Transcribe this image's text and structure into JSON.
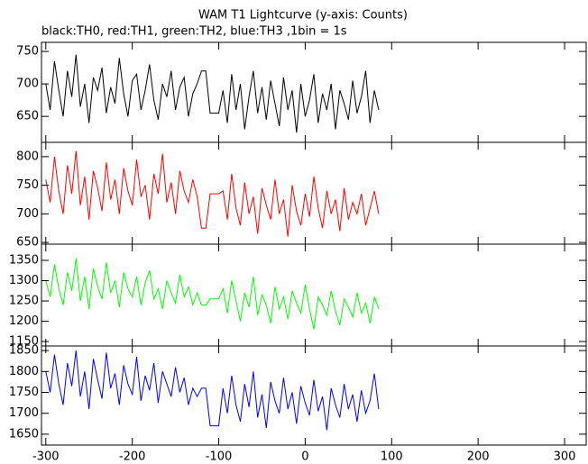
{
  "chart_data": {
    "type": "line",
    "layout": "stacked",
    "title": "WAM T1 Lightcurve (y-axis: Counts)",
    "subtitle": "black:TH0, red:TH1, green:TH2, blue:TH3 ,1bin = 1s",
    "x": [
      -300,
      -295,
      -290,
      -285,
      -280,
      -275,
      -270,
      -265,
      -260,
      -255,
      -250,
      -245,
      -240,
      -235,
      -230,
      -225,
      -220,
      -215,
      -210,
      -205,
      -200,
      -195,
      -190,
      -185,
      -180,
      -175,
      -170,
      -165,
      -160,
      -155,
      -150,
      -145,
      -140,
      -135,
      -130,
      -125,
      -120,
      -115,
      -110,
      -105,
      -100,
      -95,
      -90,
      -85,
      -80,
      -75,
      -70,
      -65,
      -60,
      -55,
      -50,
      -45,
      -40,
      -35,
      -30,
      -25,
      -20,
      -15,
      -10,
      -5,
      0,
      5,
      10,
      15,
      20,
      25,
      30,
      35,
      40,
      45,
      50,
      55,
      60,
      65,
      70,
      75,
      80,
      85
    ],
    "xlim": [
      -305,
      325
    ],
    "xticks": [
      -300,
      -200,
      -100,
      0,
      100,
      200,
      300
    ],
    "series": [
      {
        "color": "#000000",
        "ylim": [
          610,
          764
        ],
        "yticks": [
          650,
          700,
          750
        ],
        "values": [
          700,
          660,
          735,
          690,
          650,
          720,
          680,
          745,
          665,
          700,
          640,
          710,
          690,
          725,
          655,
          695,
          670,
          740,
          685,
          650,
          705,
          715,
          660,
          690,
          730,
          675,
          645,
          700,
          680,
          720,
          660,
          695,
          710,
          650,
          685,
          700,
          720,
          720,
          655,
          655,
          655,
          690,
          640,
          715,
          660,
          700,
          630,
          680,
          720,
          655,
          695,
          645,
          705,
          670,
          635,
          710,
          660,
          690,
          625,
          700,
          650,
          675,
          715,
          640,
          685,
          660,
          700,
          630,
          690,
          670,
          645,
          705,
          655,
          680,
          720,
          640,
          690,
          660
        ]
      },
      {
        "color": "#ff0000",
        "ylim": [
          647,
          825
        ],
        "yticks": [
          650,
          700,
          750,
          800
        ],
        "values": [
          760,
          720,
          800,
          740,
          700,
          785,
          735,
          810,
          715,
          765,
          690,
          775,
          745,
          705,
          790,
          725,
          760,
          700,
          780,
          740,
          715,
          795,
          730,
          750,
          690,
          770,
          735,
          805,
          720,
          755,
          700,
          775,
          740,
          720,
          760,
          730,
          675,
          675,
          735,
          735,
          735,
          740,
          690,
          770,
          710,
          680,
          755,
          700,
          730,
          665,
          745,
          715,
          690,
          760,
          700,
          725,
          660,
          750,
          705,
          680,
          735,
          695,
          765,
          710,
          675,
          740,
          700,
          725,
          670,
          745,
          690,
          720,
          700,
          735,
          680,
          710,
          740,
          700
        ]
      },
      {
        "color": "#00ff00",
        "ylim": [
          1139,
          1390
        ],
        "yticks": [
          1150,
          1200,
          1250,
          1300,
          1350
        ],
        "values": [
          1300,
          1260,
          1340,
          1280,
          1240,
          1320,
          1275,
          1355,
          1250,
          1310,
          1230,
          1330,
          1285,
          1255,
          1345,
          1270,
          1300,
          1235,
          1320,
          1280,
          1260,
          1310,
          1240,
          1295,
          1325,
          1255,
          1280,
          1230,
          1300,
          1270,
          1245,
          1315,
          1260,
          1285,
          1240,
          1270,
          1240,
          1240,
          1255,
          1255,
          1255,
          1280,
          1220,
          1300,
          1250,
          1200,
          1270,
          1235,
          1310,
          1215,
          1265,
          1240,
          1195,
          1285,
          1230,
          1260,
          1205,
          1275,
          1245,
          1220,
          1290,
          1230,
          1180,
          1260,
          1240,
          1215,
          1275,
          1225,
          1190,
          1255,
          1235,
          1210,
          1270,
          1220,
          1245,
          1195,
          1260,
          1230
        ]
      },
      {
        "color": "#0000ff",
        "ylim": [
          1624,
          1861
        ],
        "yticks": [
          1650,
          1700,
          1750,
          1800,
          1850
        ],
        "values": [
          1800,
          1750,
          1840,
          1770,
          1720,
          1820,
          1765,
          1850,
          1740,
          1800,
          1710,
          1830,
          1780,
          1735,
          1845,
          1760,
          1795,
          1720,
          1815,
          1770,
          1745,
          1835,
          1730,
          1790,
          1755,
          1820,
          1725,
          1800,
          1770,
          1740,
          1810,
          1750,
          1785,
          1720,
          1760,
          1740,
          1760,
          1760,
          1670,
          1670,
          1670,
          1760,
          1700,
          1790,
          1720,
          1680,
          1770,
          1715,
          1800,
          1690,
          1745,
          1665,
          1775,
          1730,
          1700,
          1785,
          1710,
          1750,
          1675,
          1765,
          1725,
          1695,
          1780,
          1705,
          1740,
          1660,
          1760,
          1720,
          1690,
          1770,
          1710,
          1745,
          1680,
          1755,
          1700,
          1730,
          1795,
          1710
        ]
      }
    ]
  }
}
